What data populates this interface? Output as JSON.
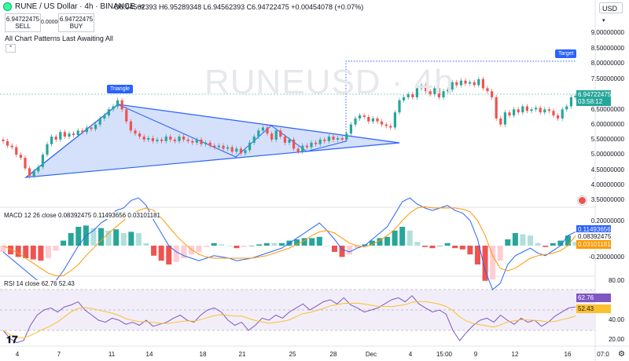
{
  "header": {
    "symbol_title": "RUNE / US Dollar · 4h · BINANCE",
    "ohlc": "O6.94562393 H6.95289348 L6.94562393 C6.94722475 +0.00454078 (+0.07%)",
    "sell_price": "6.94722475",
    "sell_label": "SELL",
    "buy_price": "6.94722475",
    "buy_label": "BUY",
    "spread": "0.00000000",
    "patterns_label": "All Chart Patterns Last Awaiting All",
    "collapse_icon": "chevron-up-icon",
    "currency": "USD",
    "watermark": "RUNEUSD · 4h",
    "watermark_sub": "RUNE / US Dollar"
  },
  "annotations": {
    "triangle": "Triangle",
    "target": "Target"
  },
  "price_axis": [
    "9.00000000",
    "8.50000000",
    "8.00000000",
    "7.50000000",
    "6.50000000",
    "6.00000000",
    "5.50000000",
    "5.00000000",
    "4.50000000",
    "4.00000000",
    "3.50000000"
  ],
  "price_tag": {
    "price": "6.94722475",
    "countdown": "03:58:12"
  },
  "macd": {
    "label": "MACD 12 26 close",
    "values": "0.08392475  0.11493656  0.03101181",
    "axis": [
      "0.20000000",
      "-0.20000000"
    ],
    "tags": [
      "0.11493656",
      "0.08392475",
      "0.03101181"
    ]
  },
  "rsi": {
    "label": "RSI 14 close",
    "values": "62.76  52.43",
    "axis": [
      "80.00",
      "40.00",
      "20.00"
    ],
    "tags": [
      "62.76",
      "52.43"
    ]
  },
  "x_axis": [
    "4",
    "7",
    "11",
    "14",
    "18",
    "21",
    "25",
    "28",
    "Dec",
    "4",
    "15:00",
    "9",
    "12",
    "16",
    "07:0"
  ],
  "colors": {
    "up": "#26a69a",
    "down": "#ef5350",
    "accent": "#2962ff",
    "macd_line": "#2962ff",
    "signal_line": "#ff9800",
    "rsi_line": "#7e57c2"
  },
  "chart_data": {
    "type": "candlestick",
    "title": "RUNE / US Dollar · 4h · BINANCE",
    "ylim": [
      3.3,
      9.3
    ],
    "close": [
      5.45,
      5.3,
      5.25,
      5.0,
      4.9,
      4.55,
      4.3,
      4.45,
      4.6,
      5.0,
      5.35,
      5.6,
      5.5,
      5.75,
      5.6,
      5.7,
      5.65,
      5.8,
      5.75,
      5.9,
      5.85,
      6.0,
      6.2,
      6.3,
      6.5,
      6.6,
      6.8,
      6.5,
      6.1,
      5.8,
      5.7,
      5.6,
      5.5,
      5.55,
      5.45,
      5.5,
      5.45,
      5.6,
      5.5,
      5.45,
      5.6,
      5.5,
      5.45,
      5.4,
      5.5,
      5.35,
      5.4,
      5.3,
      5.25,
      5.3,
      5.2,
      5.25,
      5.1,
      5.2,
      5.05,
      5.15,
      5.4,
      5.6,
      5.8,
      5.9,
      5.7,
      5.5,
      5.8,
      5.6,
      5.4,
      5.5,
      5.2,
      5.1,
      5.3,
      5.25,
      5.4,
      5.35,
      5.5,
      5.45,
      5.6,
      5.5,
      5.55,
      5.5,
      5.7,
      6.0,
      6.2,
      6.3,
      6.25,
      6.1,
      6.2,
      6.1,
      6.0,
      5.95,
      5.9,
      6.4,
      6.8,
      6.9,
      7.0,
      6.9,
      7.2,
      7.3,
      7.1,
      7.0,
      7.2,
      6.9,
      7.1,
      7.15,
      7.4,
      7.3,
      7.45,
      7.35,
      7.4,
      7.3,
      7.5,
      7.2,
      7.1,
      6.9,
      6.2,
      6.0,
      6.4,
      6.3,
      6.5,
      6.4,
      6.6,
      6.45,
      6.5,
      6.55,
      6.4,
      6.5,
      6.45,
      6.3,
      6.2,
      6.5,
      6.6,
      6.9,
      6.95
    ],
    "series": [
      {
        "name": "MACD",
        "values": [
          -0.05,
          -0.1,
          -0.15,
          -0.2,
          -0.25,
          -0.3,
          -0.32,
          -0.28,
          -0.2,
          -0.1,
          0.0,
          0.08,
          0.12,
          0.18,
          0.22,
          0.28,
          0.3,
          0.36,
          0.38,
          0.32,
          0.2,
          0.1,
          0.0,
          -0.05,
          -0.08,
          -0.1,
          -0.12,
          -0.1,
          -0.08,
          -0.09,
          -0.1,
          -0.12,
          -0.11,
          -0.1,
          -0.08,
          -0.06,
          -0.04,
          -0.02,
          0.02,
          0.06,
          0.1,
          0.14,
          0.18,
          0.12,
          0.05,
          -0.03,
          -0.05,
          -0.02,
          0.0,
          0.05,
          0.1,
          0.15,
          0.25,
          0.35,
          0.38,
          0.33,
          0.3,
          0.28,
          0.3,
          0.32,
          0.28,
          0.26,
          0.2,
          0.05,
          -0.2,
          -0.35,
          -0.3,
          -0.15,
          -0.08,
          -0.05,
          -0.02,
          -0.06,
          -0.08,
          -0.04,
          0.0,
          0.08,
          0.11
        ]
      },
      {
        "name": "Signal",
        "values": [
          0.0,
          -0.03,
          -0.06,
          -0.1,
          -0.14,
          -0.18,
          -0.22,
          -0.24,
          -0.24,
          -0.2,
          -0.15,
          -0.08,
          -0.02,
          0.04,
          0.1,
          0.15,
          0.2,
          0.25,
          0.28,
          0.3,
          0.28,
          0.22,
          0.15,
          0.08,
          0.02,
          -0.03,
          -0.07,
          -0.09,
          -0.1,
          -0.1,
          -0.1,
          -0.1,
          -0.1,
          -0.1,
          -0.09,
          -0.08,
          -0.06,
          -0.04,
          -0.02,
          0.01,
          0.04,
          0.08,
          0.11,
          0.12,
          0.1,
          0.06,
          0.02,
          0.0,
          -0.01,
          0.01,
          0.04,
          0.08,
          0.13,
          0.2,
          0.26,
          0.3,
          0.31,
          0.3,
          0.3,
          0.3,
          0.3,
          0.29,
          0.27,
          0.2,
          0.08,
          -0.08,
          -0.18,
          -0.2,
          -0.18,
          -0.14,
          -0.1,
          -0.08,
          -0.07,
          -0.06,
          -0.04,
          0.0,
          0.08
        ]
      }
    ],
    "rsi": [
      40,
      32,
      28,
      30,
      45,
      55,
      60,
      62,
      58,
      63,
      65,
      68,
      60,
      55,
      50,
      48,
      52,
      50,
      46,
      48,
      45,
      50,
      44,
      46,
      48,
      52,
      55,
      50,
      48,
      55,
      60,
      62,
      58,
      50,
      45,
      48,
      40,
      45,
      52,
      50,
      55,
      52,
      58,
      62,
      66,
      60,
      64,
      68,
      70,
      66,
      72,
      65,
      62,
      58,
      60,
      62,
      66,
      70,
      72,
      68,
      74,
      66,
      62,
      58,
      60,
      56,
      40,
      30,
      38,
      45,
      50,
      52,
      48,
      55,
      50,
      46,
      52,
      48,
      50,
      44,
      48,
      54,
      58,
      62,
      63
    ]
  }
}
